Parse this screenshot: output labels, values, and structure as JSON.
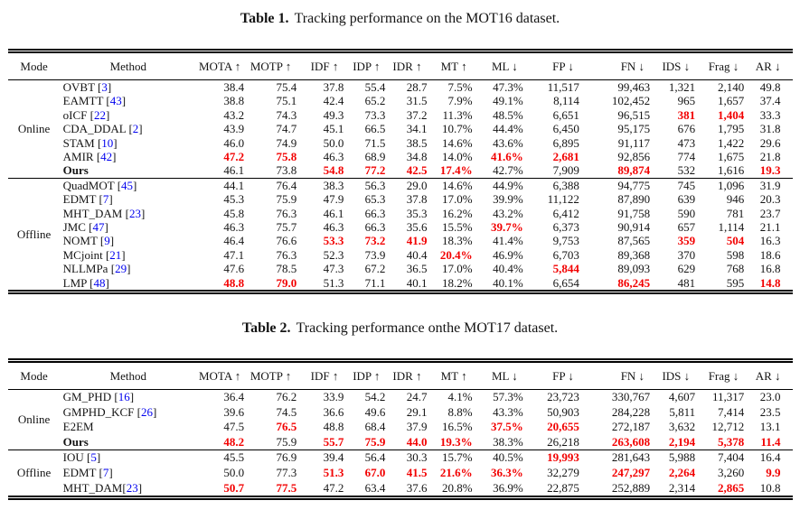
{
  "colors": {
    "highlight": "#f20000",
    "citation": "#0000ee",
    "text": "#141414"
  },
  "table1": {
    "caption_label": "Table 1.",
    "caption_text": "Tracking performance on the MOT16 dataset.",
    "headers": [
      "Mode",
      "Method",
      "MOTA ↑",
      "MOTP ↑",
      "IDF ↑",
      "IDP ↑",
      "IDR ↑",
      "MT ↑",
      "ML ↓",
      "FP ↓",
      "FN ↓",
      "IDS ↓",
      "Frag ↓",
      "AR ↓"
    ],
    "groups": [
      {
        "mode": "Online",
        "rows": [
          {
            "method": "OVBT",
            "cite": "3",
            "sp": true,
            "bold": false,
            "v": [
              "38.4",
              "75.4",
              "37.8",
              "55.4",
              "28.7",
              "7.5%",
              "47.3%",
              "11,517",
              "99,463",
              "1,321",
              "2,140",
              "49.8"
            ],
            "red": []
          },
          {
            "method": "EAMTT",
            "cite": "43",
            "sp": true,
            "bold": false,
            "v": [
              "38.8",
              "75.1",
              "42.4",
              "65.2",
              "31.5",
              "7.9%",
              "49.1%",
              "8,114",
              "102,452",
              "965",
              "1,657",
              "37.4"
            ],
            "red": []
          },
          {
            "method": "oICF",
            "cite": "22",
            "sp": true,
            "bold": false,
            "v": [
              "43.2",
              "74.3",
              "49.3",
              "73.3",
              "37.2",
              "11.3%",
              "48.5%",
              "6,651",
              "96,515",
              "381",
              "1,404",
              "33.3"
            ],
            "red": [
              9,
              10
            ]
          },
          {
            "method": "CDA_DDAL",
            "cite": "2",
            "sp": true,
            "bold": false,
            "v": [
              "43.9",
              "74.7",
              "45.1",
              "66.5",
              "34.1",
              "10.7%",
              "44.4%",
              "6,450",
              "95,175",
              "676",
              "1,795",
              "31.8"
            ],
            "red": []
          },
          {
            "method": "STAM",
            "cite": "10",
            "sp": true,
            "bold": false,
            "v": [
              "46.0",
              "74.9",
              "50.0",
              "71.5",
              "38.5",
              "14.6%",
              "43.6%",
              "6,895",
              "91,117",
              "473",
              "1,422",
              "29.6"
            ],
            "red": []
          },
          {
            "method": "AMIR",
            "cite": "42",
            "sp": true,
            "bold": false,
            "v": [
              "47.2",
              "75.8",
              "46.3",
              "68.9",
              "34.8",
              "14.0%",
              "41.6%",
              "2,681",
              "92,856",
              "774",
              "1,675",
              "21.8"
            ],
            "red": [
              0,
              1,
              6,
              7
            ]
          },
          {
            "method": "Ours",
            "cite": null,
            "sp": false,
            "bold": true,
            "v": [
              "46.1",
              "73.8",
              "54.8",
              "77.2",
              "42.5",
              "17.4%",
              "42.7%",
              "7,909",
              "89,874",
              "532",
              "1,616",
              "19.3"
            ],
            "red": [
              2,
              3,
              4,
              5,
              8,
              11
            ]
          }
        ]
      },
      {
        "mode": "Offline",
        "rows": [
          {
            "method": "QuadMOT",
            "cite": "45",
            "sp": true,
            "bold": false,
            "v": [
              "44.1",
              "76.4",
              "38.3",
              "56.3",
              "29.0",
              "14.6%",
              "44.9%",
              "6,388",
              "94,775",
              "745",
              "1,096",
              "31.9"
            ],
            "red": []
          },
          {
            "method": "EDMT",
            "cite": "7",
            "sp": true,
            "bold": false,
            "v": [
              "45.3",
              "75.9",
              "47.9",
              "65.3",
              "37.8",
              "17.0%",
              "39.9%",
              "11,122",
              "87,890",
              "639",
              "946",
              "20.3"
            ],
            "red": []
          },
          {
            "method": "MHT_DAM",
            "cite": "23",
            "sp": true,
            "bold": false,
            "v": [
              "45.8",
              "76.3",
              "46.1",
              "66.3",
              "35.3",
              "16.2%",
              "43.2%",
              "6,412",
              "91,758",
              "590",
              "781",
              "23.7"
            ],
            "red": []
          },
          {
            "method": "JMC",
            "cite": "47",
            "sp": true,
            "bold": false,
            "v": [
              "46.3",
              "75.7",
              "46.3",
              "66.3",
              "35.6",
              "15.5%",
              "39.7%",
              "6,373",
              "90,914",
              "657",
              "1,114",
              "21.1"
            ],
            "red": [
              6
            ]
          },
          {
            "method": "NOMT",
            "cite": "9",
            "sp": true,
            "bold": false,
            "v": [
              "46.4",
              "76.6",
              "53.3",
              "73.2",
              "41.9",
              "18.3%",
              "41.4%",
              "9,753",
              "87,565",
              "359",
              "504",
              "16.3"
            ],
            "red": [
              2,
              3,
              4,
              9,
              10
            ]
          },
          {
            "method": "MCjoint",
            "cite": "21",
            "sp": true,
            "bold": false,
            "v": [
              "47.1",
              "76.3",
              "52.3",
              "73.9",
              "40.4",
              "20.4%",
              "46.9%",
              "6,703",
              "89,368",
              "370",
              "598",
              "18.6"
            ],
            "red": [
              5
            ]
          },
          {
            "method": "NLLMPa",
            "cite": "29",
            "sp": true,
            "bold": false,
            "v": [
              "47.6",
              "78.5",
              "47.3",
              "67.2",
              "36.5",
              "17.0%",
              "40.4%",
              "5,844",
              "89,093",
              "629",
              "768",
              "16.8"
            ],
            "red": [
              7
            ]
          },
          {
            "method": "LMP",
            "cite": "48",
            "sp": true,
            "bold": false,
            "v": [
              "48.8",
              "79.0",
              "51.3",
              "71.1",
              "40.1",
              "18.2%",
              "40.1%",
              "6,654",
              "86,245",
              "481",
              "595",
              "14.8"
            ],
            "red": [
              0,
              1,
              8,
              11
            ]
          }
        ]
      }
    ]
  },
  "table2": {
    "caption_label": "Table 2.",
    "caption_text": "Tracking performance onthe MOT17 dataset.",
    "headers": [
      "Mode",
      "Method",
      "MOTA ↑",
      "MOTP ↑",
      "IDF ↑",
      "IDP ↑",
      "IDR ↑",
      "MT ↑",
      "ML ↓",
      "FP ↓",
      "FN ↓",
      "IDS ↓",
      "Frag ↓",
      "AR ↓"
    ],
    "groups": [
      {
        "mode": "Online",
        "rows": [
          {
            "method": "GM_PHD",
            "cite": "16",
            "sp": true,
            "bold": false,
            "v": [
              "36.4",
              "76.2",
              "33.9",
              "54.2",
              "24.7",
              "4.1%",
              "57.3%",
              "23,723",
              "330,767",
              "4,607",
              "11,317",
              "23.0"
            ],
            "red": []
          },
          {
            "method": "GMPHD_KCF",
            "cite": "26",
            "sp": true,
            "bold": false,
            "v": [
              "39.6",
              "74.5",
              "36.6",
              "49.6",
              "29.1",
              "8.8%",
              "43.3%",
              "50,903",
              "284,228",
              "5,811",
              "7,414",
              "23.5"
            ],
            "red": []
          },
          {
            "method": "E2EM",
            "cite": null,
            "sp": false,
            "bold": false,
            "v": [
              "47.5",
              "76.5",
              "48.8",
              "68.4",
              "37.9",
              "16.5%",
              "37.5%",
              "20,655",
              "272,187",
              "3,632",
              "12,712",
              "13.1"
            ],
            "red": [
              1,
              6,
              7
            ]
          },
          {
            "method": "Ours",
            "cite": null,
            "sp": false,
            "bold": true,
            "v": [
              "48.2",
              "75.9",
              "55.7",
              "75.9",
              "44.0",
              "19.3%",
              "38.3%",
              "26,218",
              "263,608",
              "2,194",
              "5,378",
              "11.4"
            ],
            "red": [
              0,
              2,
              3,
              4,
              5,
              8,
              9,
              10,
              11
            ]
          }
        ]
      },
      {
        "mode": "Offline",
        "rows": [
          {
            "method": "IOU",
            "cite": "5",
            "sp": true,
            "bold": false,
            "v": [
              "45.5",
              "76.9",
              "39.4",
              "56.4",
              "30.3",
              "15.7%",
              "40.5%",
              "19,993",
              "281,643",
              "5,988",
              "7,404",
              "16.4"
            ],
            "red": [
              7
            ]
          },
          {
            "method": "EDMT",
            "cite": "7",
            "sp": true,
            "bold": false,
            "v": [
              "50.0",
              "77.3",
              "51.3",
              "67.0",
              "41.5",
              "21.6%",
              "36.3%",
              "32,279",
              "247,297",
              "2,264",
              "3,260",
              "9.9"
            ],
            "red": [
              2,
              3,
              4,
              5,
              6,
              8,
              9,
              11
            ]
          },
          {
            "method": "MHT_DAM",
            "cite": "23",
            "sp": false,
            "bold": false,
            "v": [
              "50.7",
              "77.5",
              "47.2",
              "63.4",
              "37.6",
              "20.8%",
              "36.9%",
              "22,875",
              "252,889",
              "2,314",
              "2,865",
              "10.8"
            ],
            "red": [
              0,
              1,
              10
            ]
          }
        ]
      }
    ]
  }
}
